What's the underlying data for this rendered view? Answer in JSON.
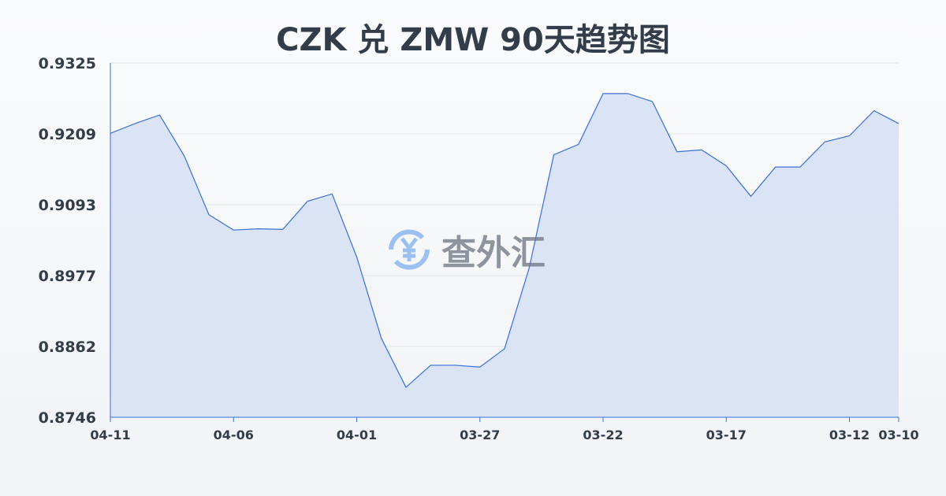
{
  "chart_data": {
    "type": "area",
    "title": "CZK 兑 ZMW 90天趋势图",
    "x": [
      "04-11",
      "04-10",
      "04-09",
      "04-08",
      "04-07",
      "04-06",
      "04-05",
      "04-04",
      "04-03",
      "04-02",
      "04-01",
      "03-31",
      "03-30",
      "03-29",
      "03-28",
      "03-27",
      "03-26",
      "03-25",
      "03-24",
      "03-23",
      "03-22",
      "03-21",
      "03-20",
      "03-19",
      "03-18",
      "03-17",
      "03-16",
      "03-15",
      "03-14",
      "03-13",
      "03-12",
      "03-11",
      "03-10"
    ],
    "values": [
      0.921,
      0.9226,
      0.924,
      0.9173,
      0.9077,
      0.9052,
      0.9054,
      0.9053,
      0.9099,
      0.9111,
      0.9008,
      0.8875,
      0.8795,
      0.8831,
      0.8831,
      0.8828,
      0.8858,
      0.899,
      0.9175,
      0.9192,
      0.9275,
      0.9275,
      0.9262,
      0.918,
      0.9183,
      0.9157,
      0.9107,
      0.9155,
      0.9155,
      0.9196,
      0.9206,
      0.9247,
      0.9226
    ],
    "x_tick_labels": [
      "04-11",
      "04-06",
      "04-01",
      "03-27",
      "03-22",
      "03-17",
      "03-12",
      "03-10"
    ],
    "y_tick_labels": [
      "0.9325",
      "0.9209",
      "0.9093",
      "0.8977",
      "0.8862",
      "0.8746"
    ],
    "ylim": [
      0.8746,
      0.9325
    ],
    "grid": true,
    "line_color": "#3a6fd8",
    "fill_color": "#d6e1f5"
  },
  "watermark": {
    "text": "查外汇",
    "icon": "yen-exchange-icon"
  }
}
